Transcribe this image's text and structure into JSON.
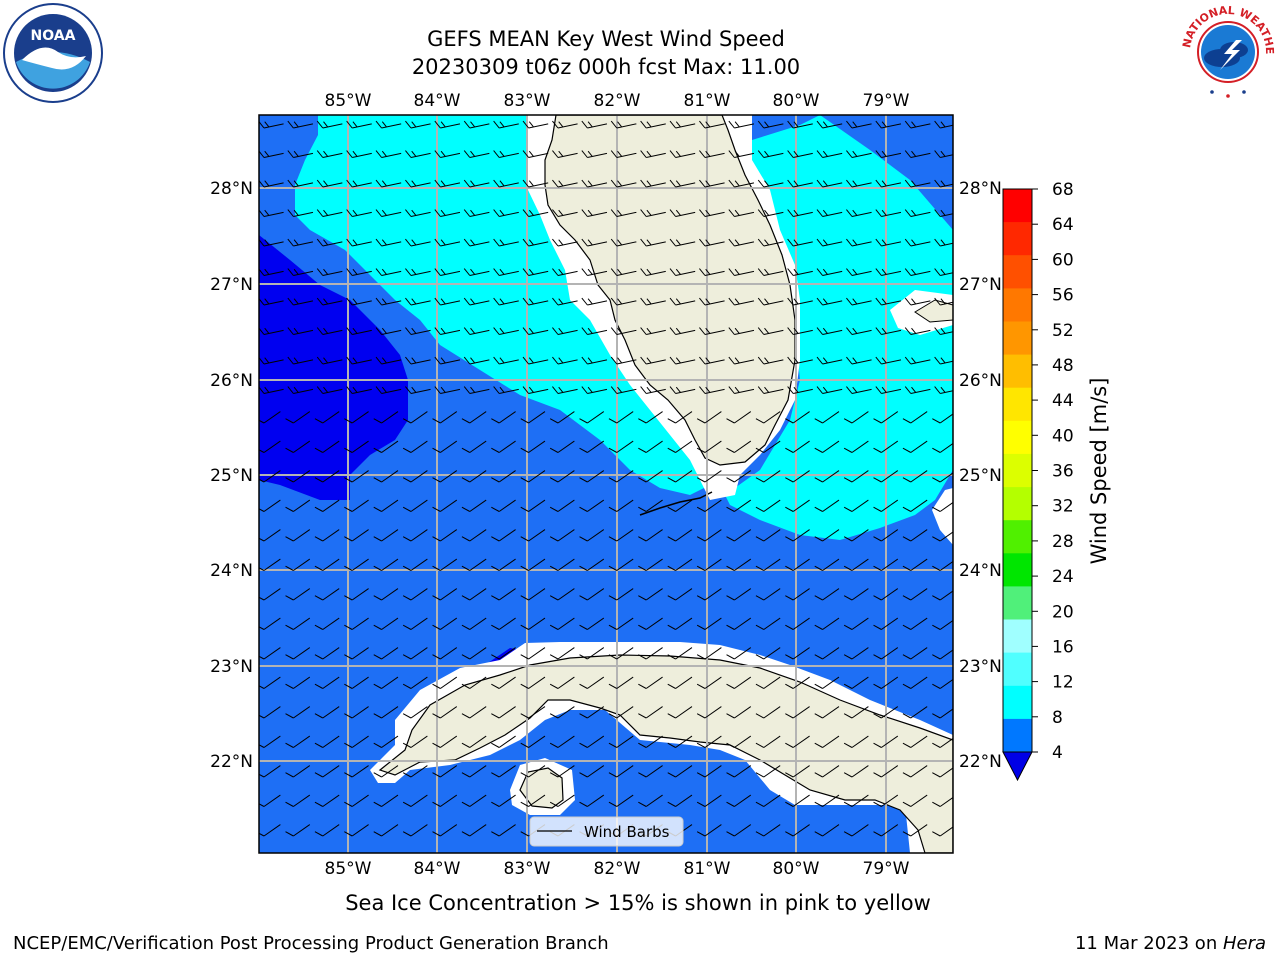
{
  "header": {
    "title_line1": "GEFS MEAN Key West Wind Speed",
    "title_line2": "20230309 t06z 000h fcst   Max: 11.00"
  },
  "map": {
    "lon_labels": [
      "85°W",
      "84°W",
      "83°W",
      "82°W",
      "81°W",
      "80°W",
      "79°W"
    ],
    "lat_labels": [
      "28°N",
      "27°N",
      "26°N",
      "25°N",
      "24°N",
      "23°N",
      "22°N"
    ],
    "legend_label": "Wind Barbs",
    "colors": {
      "land": "#eeeedc",
      "wind_4_8": "#1e6ff5",
      "wind_8_12": "#00ffff",
      "wind_below_4": "#0000f0",
      "grid": "#b4b4b4"
    }
  },
  "colorbar": {
    "title": "Wind Speed [m/s]",
    "ticks": [
      "68",
      "64",
      "60",
      "56",
      "52",
      "48",
      "44",
      "40",
      "36",
      "32",
      "28",
      "24",
      "20",
      "16",
      "12",
      "8",
      "4"
    ],
    "colors": [
      "#ff0000",
      "#ff2800",
      "#ff5000",
      "#ff7800",
      "#ff9600",
      "#ffbe00",
      "#ffe600",
      "#ffff00",
      "#dcff00",
      "#b4ff00",
      "#50f000",
      "#00e600",
      "#50f07a",
      "#a0ffff",
      "#50ffff",
      "#00ffff",
      "#0078ff"
    ],
    "under_color": "#0000e6"
  },
  "note": "Sea Ice Concentration > 15% is shown in pink to yellow",
  "footer": {
    "left": "NCEP/EMC/Verification Post Processing Product Generation Branch",
    "right_date": "11 Mar 2023 on ",
    "right_host": "Hera"
  },
  "logos": {
    "noaa_text": "NOAA",
    "nws_text": "NATIONAL WEATHER SERVICE"
  }
}
